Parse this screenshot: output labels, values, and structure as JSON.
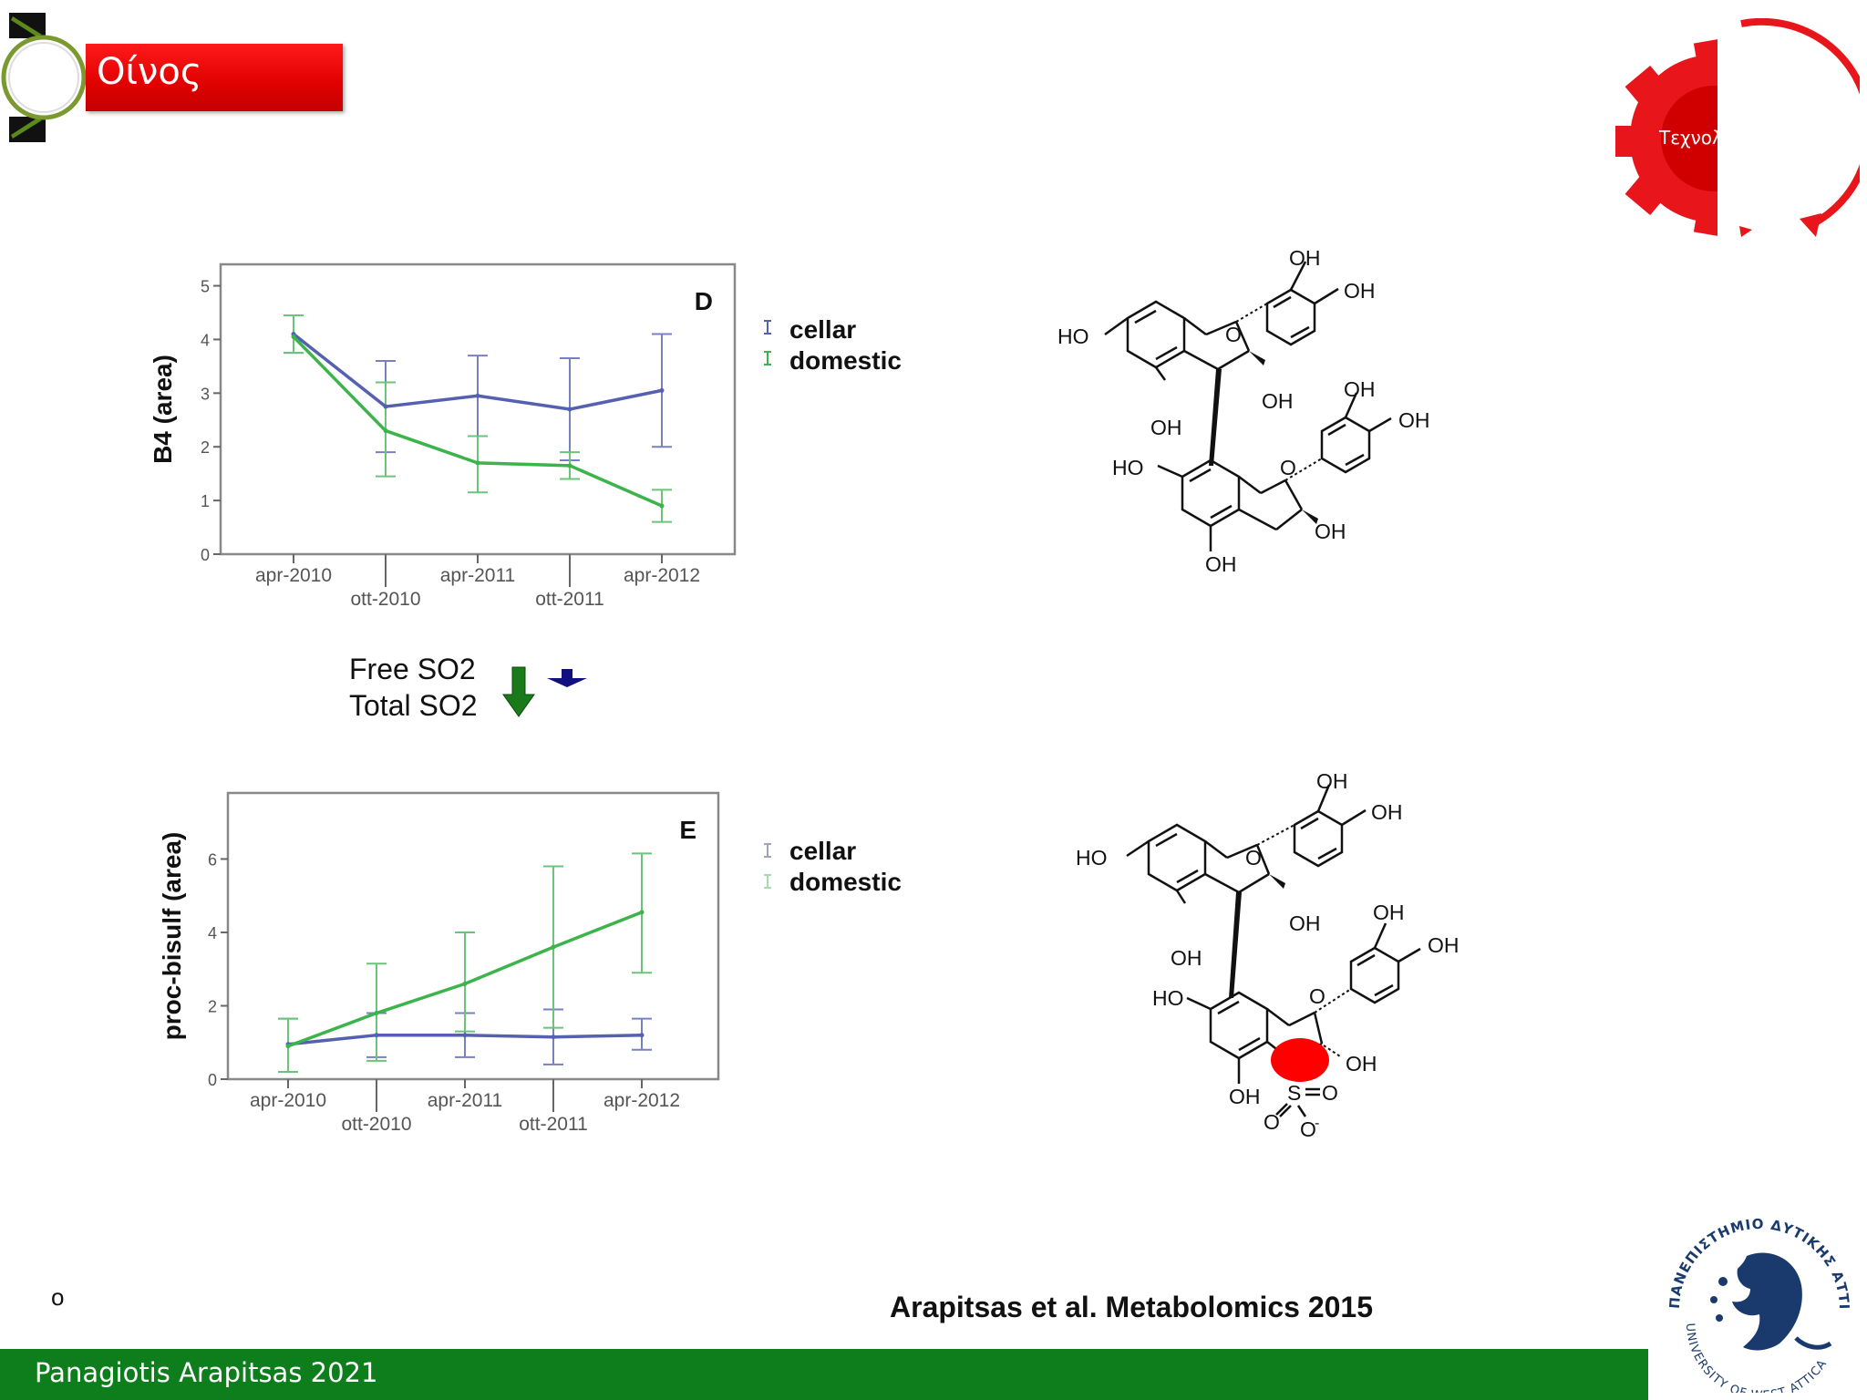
{
  "slide": {
    "title": "Οίνος",
    "gear_text": "Τεχνολ",
    "so2": {
      "free_label": "Free SO2",
      "total_label": "Total SO2"
    },
    "citation": "Arapitsas et al. Metabolomics 2015",
    "bullet": "o",
    "footer": "Panagiotis Arapitsas 2021",
    "colors": {
      "title_bg": "#e00000",
      "footer_bg": "#0e7d1c",
      "cellar": "#5560b0",
      "domestic": "#3cb44b",
      "arrow_free": "#1a7a1a",
      "arrow_total": "#101080",
      "marker": "#ff0000"
    },
    "university_logo": {
      "text_top": "ΠΑΝΕΠΙΣΤΗΜΙΟ ΔΥΤΙΚΗΣ ΑΤΤΙΚΗΣ",
      "text_bottom": "UNIVERSITY OF WEST ATTICA"
    }
  },
  "chart_data": [
    {
      "type": "line",
      "panel_label": "D",
      "ylabel": "B4 (area)",
      "categories": [
        "apr-2010",
        "ott-2010",
        "apr-2011",
        "ott-2011",
        "apr-2012"
      ],
      "yticks": [
        0,
        1,
        2,
        3,
        4,
        5
      ],
      "ylim": [
        0,
        5.4
      ],
      "series": [
        {
          "name": "cellar",
          "color": "#5560b0",
          "values": [
            4.1,
            2.75,
            2.95,
            2.7,
            3.05
          ],
          "low": [
            3.75,
            1.9,
            2.2,
            1.75,
            2.0
          ],
          "high": [
            4.45,
            3.6,
            3.7,
            3.65,
            4.1
          ]
        },
        {
          "name": "domestic",
          "color": "#3cb44b",
          "values": [
            4.05,
            2.3,
            1.7,
            1.65,
            0.9
          ],
          "low": [
            3.75,
            1.45,
            1.15,
            1.4,
            0.6
          ],
          "high": [
            4.45,
            3.2,
            2.2,
            1.9,
            1.2
          ]
        }
      ]
    },
    {
      "type": "line",
      "panel_label": "E",
      "ylabel": "proc-bisulf (area)",
      "categories": [
        "apr-2010",
        "ott-2010",
        "apr-2011",
        "ott-2011",
        "apr-2012"
      ],
      "yticks": [
        0,
        2,
        4,
        6
      ],
      "ylim": [
        0,
        7.8
      ],
      "series": [
        {
          "name": "cellar",
          "color": "#5560b0",
          "values": [
            0.95,
            1.2,
            1.2,
            1.15,
            1.2
          ],
          "low": [
            0.2,
            0.6,
            0.6,
            0.4,
            0.8
          ],
          "high": [
            1.65,
            1.8,
            1.8,
            1.9,
            1.65
          ]
        },
        {
          "name": "domestic",
          "color": "#3cb44b",
          "values": [
            0.9,
            1.8,
            2.6,
            3.6,
            4.55
          ],
          "low": [
            0.2,
            0.5,
            1.3,
            1.4,
            2.9
          ],
          "high": [
            1.65,
            3.15,
            4.0,
            5.8,
            6.15
          ]
        }
      ]
    }
  ]
}
